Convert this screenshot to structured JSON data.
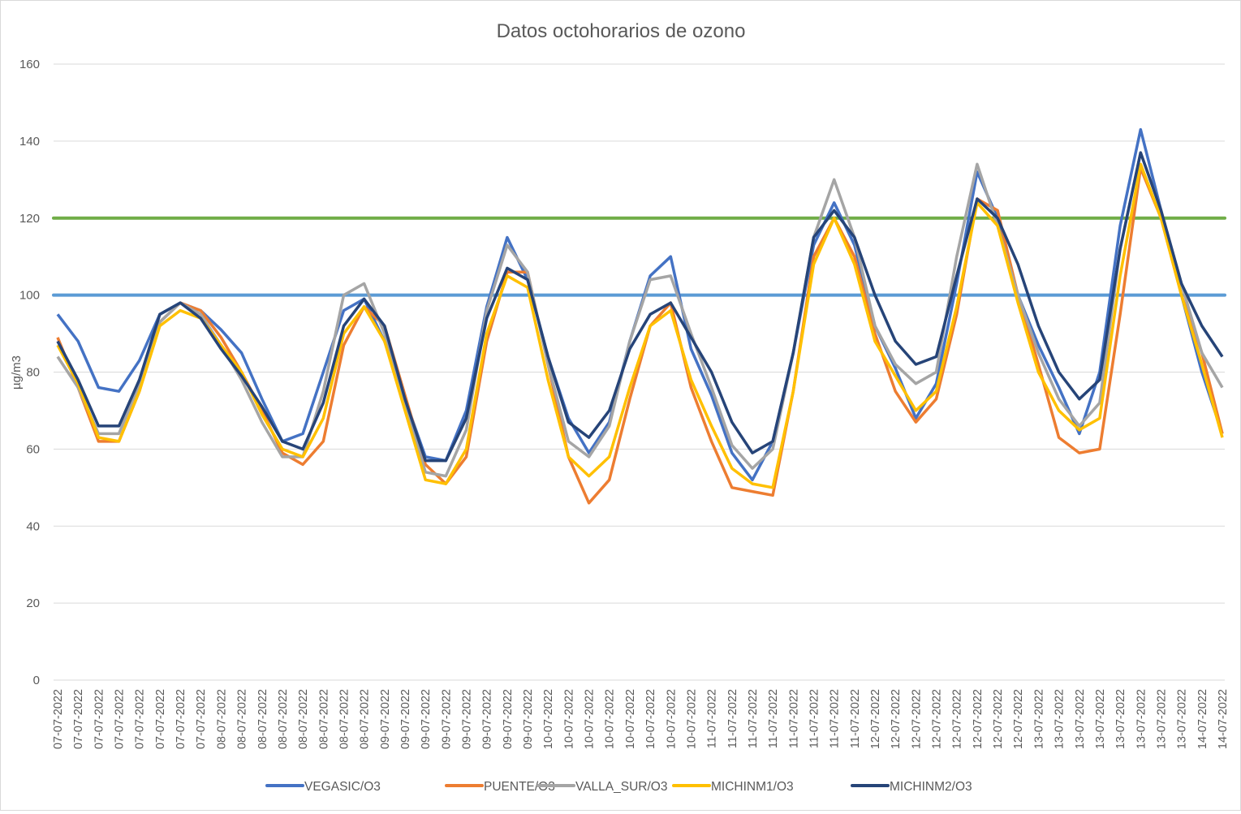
{
  "chart_data": {
    "type": "line",
    "title": "Datos octohorarios de ozono",
    "xlabel": "",
    "ylabel": "µg/m3",
    "ylim": [
      0,
      160
    ],
    "yticks": [
      0,
      20,
      40,
      60,
      80,
      100,
      120,
      140,
      160
    ],
    "grid": true,
    "legend": "bottom",
    "categories": [
      "07-07-2022",
      "07-07-2022",
      "07-07-2022",
      "07-07-2022",
      "07-07-2022",
      "07-07-2022",
      "07-07-2022",
      "07-07-2022",
      "08-07-2022",
      "08-07-2022",
      "08-07-2022",
      "08-07-2022",
      "08-07-2022",
      "08-07-2022",
      "08-07-2022",
      "08-07-2022",
      "09-07-2022",
      "09-07-2022",
      "09-07-2022",
      "09-07-2022",
      "09-07-2022",
      "09-07-2022",
      "09-07-2022",
      "09-07-2022",
      "10-07-2022",
      "10-07-2022",
      "10-07-2022",
      "10-07-2022",
      "10-07-2022",
      "10-07-2022",
      "10-07-2022",
      "10-07-2022",
      "11-07-2022",
      "11-07-2022",
      "11-07-2022",
      "11-07-2022",
      "11-07-2022",
      "11-07-2022",
      "11-07-2022",
      "11-07-2022",
      "12-07-2022",
      "12-07-2022",
      "12-07-2022",
      "12-07-2022",
      "12-07-2022",
      "12-07-2022",
      "12-07-2022",
      "12-07-2022",
      "13-07-2022",
      "13-07-2022",
      "13-07-2022",
      "13-07-2022",
      "13-07-2022",
      "13-07-2022",
      "13-07-2022",
      "13-07-2022",
      "14-07-2022",
      "14-07-2022"
    ],
    "series": [
      {
        "name": "VEGASIC/O3",
        "color": "#4472C4",
        "values": [
          95,
          88,
          76,
          75,
          83,
          95,
          98,
          96,
          91,
          85,
          73,
          62,
          64,
          80,
          96,
          99,
          88,
          73,
          58,
          57,
          70,
          97,
          115,
          104,
          84,
          68,
          59,
          67,
          88,
          105,
          110,
          86,
          74,
          59,
          52,
          62,
          85,
          113,
          124,
          113,
          92,
          81,
          68,
          77,
          103,
          132,
          120,
          100,
          87,
          76,
          64,
          80,
          118,
          143,
          122,
          100,
          80,
          64
        ]
      },
      {
        "name": "PUENTE/O3",
        "color": "#ED7D31",
        "values": [
          89,
          76,
          62,
          62,
          75,
          93,
          98,
          96,
          89,
          80,
          70,
          59,
          56,
          62,
          87,
          97,
          92,
          74,
          56,
          51,
          58,
          88,
          106,
          106,
          82,
          58,
          46,
          52,
          73,
          92,
          98,
          76,
          62,
          50,
          49,
          48,
          75,
          110,
          120,
          110,
          90,
          75,
          67,
          73,
          95,
          125,
          122,
          100,
          82,
          63,
          59,
          60,
          95,
          133,
          120,
          100,
          85,
          64
        ]
      },
      {
        "name": "VALLA_SUR/O3",
        "color": "#A5A5A5",
        "values": [
          84,
          76,
          64,
          64,
          77,
          93,
          98,
          95,
          87,
          78,
          67,
          58,
          58,
          75,
          100,
          103,
          90,
          72,
          54,
          53,
          65,
          96,
          113,
          106,
          82,
          62,
          58,
          66,
          88,
          104,
          105,
          90,
          76,
          61,
          55,
          60,
          85,
          115,
          130,
          115,
          92,
          82,
          77,
          80,
          110,
          134,
          118,
          100,
          85,
          73,
          66,
          72,
          112,
          137,
          122,
          103,
          85,
          76
        ]
      },
      {
        "name": "MICHINM1/O3",
        "color": "#FFC000",
        "values": [
          87,
          77,
          63,
          62,
          75,
          92,
          96,
          94,
          87,
          80,
          69,
          60,
          58,
          68,
          90,
          97,
          88,
          70,
          52,
          51,
          60,
          90,
          105,
          102,
          78,
          58,
          53,
          58,
          76,
          92,
          96,
          78,
          66,
          55,
          51,
          50,
          75,
          108,
          120,
          108,
          88,
          79,
          70,
          75,
          97,
          124,
          118,
          98,
          80,
          70,
          65,
          68,
          105,
          134,
          120,
          100,
          82,
          63
        ]
      },
      {
        "name": "MICHINM2/O3",
        "color": "#264478",
        "values": [
          88,
          78,
          66,
          66,
          78,
          95,
          98,
          94,
          86,
          79,
          71,
          62,
          60,
          72,
          92,
          99,
          92,
          73,
          57,
          57,
          68,
          94,
          107,
          104,
          84,
          67,
          63,
          70,
          86,
          95,
          98,
          89,
          80,
          67,
          59,
          62,
          85,
          115,
          122,
          115,
          100,
          88,
          82,
          84,
          105,
          125,
          120,
          108,
          92,
          80,
          73,
          78,
          112,
          137,
          122,
          103,
          92,
          84
        ]
      }
    ],
    "reference_lines": [
      {
        "value": 120,
        "color": "#70AD47"
      },
      {
        "value": 100,
        "color": "#5B9BD5"
      }
    ]
  }
}
